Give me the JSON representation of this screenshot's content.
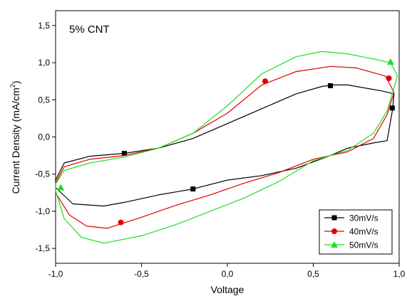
{
  "chart_data": {
    "type": "line",
    "annotation": "5% CNT",
    "xlabel": "Voltage",
    "ylabel": "Current Density (mA/cm²)",
    "ylabel_main": "Current Density (mA/cm",
    "ylabel_sup": "2",
    "ylabel_end": ")",
    "xlim": [
      -1.0,
      1.0
    ],
    "ylim": [
      -1.7,
      1.7
    ],
    "x_ticks": [
      -1.0,
      -0.5,
      0.0,
      0.5,
      1.0
    ],
    "x_tick_labels": [
      "-1,0",
      "-0,5",
      "0,0",
      "0,5",
      "1,0"
    ],
    "y_ticks": [
      -1.5,
      -1.0,
      -0.5,
      0.0,
      0.5,
      1.0,
      1.5
    ],
    "y_tick_labels": [
      "-1,5",
      "-1,0",
      "-0,5",
      "0,0",
      "0,5",
      "1,0",
      "1,5"
    ],
    "grid": false,
    "legend_position": "bottom-right",
    "series": [
      {
        "name": "30mV/s",
        "color": "#000000",
        "marker": "square",
        "points": [
          [
            -1.0,
            -0.58
          ],
          [
            -0.95,
            -0.35
          ],
          [
            -0.8,
            -0.26
          ],
          [
            -0.6,
            -0.22
          ],
          [
            -0.4,
            -0.15
          ],
          [
            -0.2,
            -0.02
          ],
          [
            0.0,
            0.18
          ],
          [
            0.2,
            0.38
          ],
          [
            0.4,
            0.58
          ],
          [
            0.55,
            0.68
          ],
          [
            0.62,
            0.7
          ],
          [
            0.7,
            0.7
          ],
          [
            0.8,
            0.66
          ],
          [
            0.9,
            0.62
          ],
          [
            0.97,
            0.58
          ],
          [
            0.96,
            0.35
          ],
          [
            0.93,
            -0.05
          ],
          [
            0.85,
            -0.08
          ],
          [
            0.7,
            -0.15
          ],
          [
            0.6,
            -0.25
          ],
          [
            0.4,
            -0.42
          ],
          [
            0.2,
            -0.52
          ],
          [
            0.0,
            -0.58
          ],
          [
            -0.2,
            -0.7
          ],
          [
            -0.4,
            -0.78
          ],
          [
            -0.6,
            -0.88
          ],
          [
            -0.72,
            -0.93
          ],
          [
            -0.9,
            -0.9
          ],
          [
            -1.0,
            -0.68
          ]
        ],
        "marker_points": [
          [
            -0.6,
            -0.22
          ],
          [
            -0.2,
            -0.7
          ],
          [
            0.6,
            0.69
          ],
          [
            0.96,
            0.39
          ]
        ]
      },
      {
        "name": "40mV/s",
        "color": "#e00000",
        "marker": "circle",
        "points": [
          [
            -1.0,
            -0.62
          ],
          [
            -0.95,
            -0.4
          ],
          [
            -0.8,
            -0.3
          ],
          [
            -0.6,
            -0.25
          ],
          [
            -0.4,
            -0.15
          ],
          [
            -0.2,
            0.05
          ],
          [
            0.0,
            0.32
          ],
          [
            0.2,
            0.7
          ],
          [
            0.4,
            0.88
          ],
          [
            0.6,
            0.95
          ],
          [
            0.75,
            0.93
          ],
          [
            0.92,
            0.82
          ],
          [
            0.97,
            0.6
          ],
          [
            0.93,
            0.3
          ],
          [
            0.85,
            -0.02
          ],
          [
            0.7,
            -0.2
          ],
          [
            0.5,
            -0.3
          ],
          [
            0.3,
            -0.48
          ],
          [
            0.1,
            -0.62
          ],
          [
            -0.1,
            -0.78
          ],
          [
            -0.3,
            -0.92
          ],
          [
            -0.5,
            -1.08
          ],
          [
            -0.7,
            -1.23
          ],
          [
            -0.82,
            -1.2
          ],
          [
            -0.92,
            -1.05
          ],
          [
            -1.0,
            -0.75
          ]
        ],
        "marker_points": [
          [
            -0.62,
            -1.15
          ],
          [
            0.22,
            0.75
          ],
          [
            0.94,
            0.79
          ]
        ]
      },
      {
        "name": "50mV/s",
        "color": "#22dd22",
        "marker": "triangle",
        "points": [
          [
            -1.0,
            -0.63
          ],
          [
            -0.95,
            -0.45
          ],
          [
            -0.8,
            -0.35
          ],
          [
            -0.6,
            -0.27
          ],
          [
            -0.4,
            -0.15
          ],
          [
            -0.2,
            0.05
          ],
          [
            0.0,
            0.42
          ],
          [
            0.2,
            0.85
          ],
          [
            0.4,
            1.08
          ],
          [
            0.55,
            1.15
          ],
          [
            0.7,
            1.12
          ],
          [
            0.85,
            1.05
          ],
          [
            0.95,
            1.0
          ],
          [
            0.99,
            0.82
          ],
          [
            0.93,
            0.35
          ],
          [
            0.85,
            0.05
          ],
          [
            0.7,
            -0.18
          ],
          [
            0.5,
            -0.32
          ],
          [
            0.3,
            -0.6
          ],
          [
            0.1,
            -0.82
          ],
          [
            -0.1,
            -1.0
          ],
          [
            -0.3,
            -1.18
          ],
          [
            -0.5,
            -1.33
          ],
          [
            -0.72,
            -1.43
          ],
          [
            -0.85,
            -1.35
          ],
          [
            -0.95,
            -1.1
          ],
          [
            -1.0,
            -0.72
          ]
        ],
        "marker_points": [
          [
            -0.97,
            -0.68
          ],
          [
            0.95,
            1.01
          ]
        ]
      }
    ]
  }
}
